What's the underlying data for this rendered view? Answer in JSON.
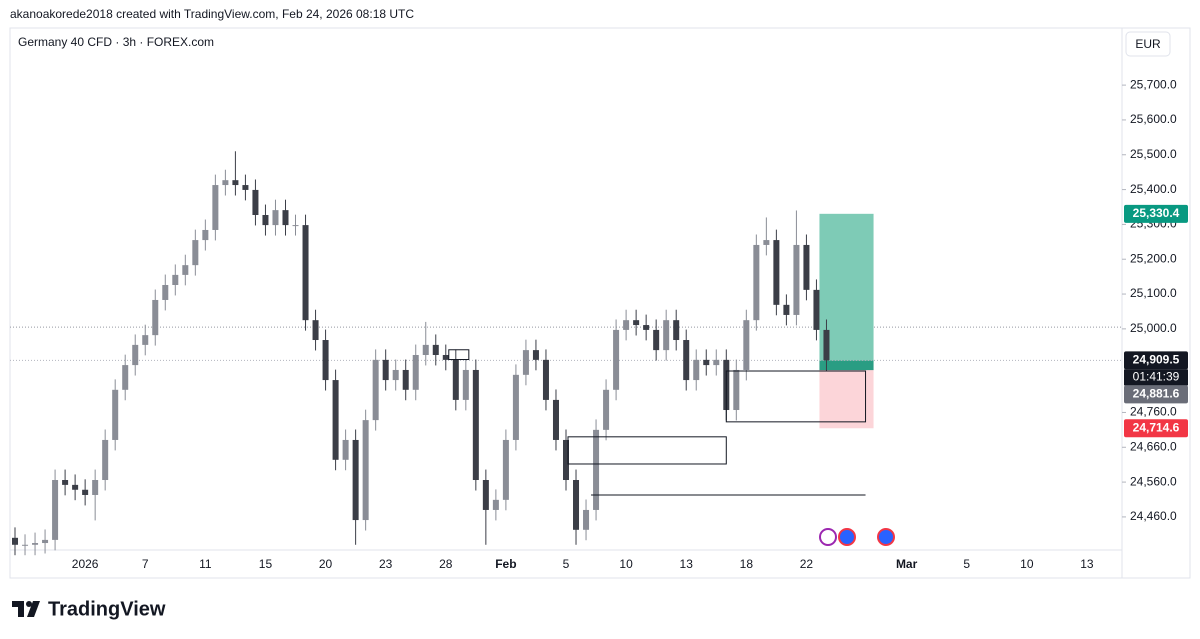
{
  "chart_data": {
    "type": "candlestick",
    "credit": "akanoakorede2018 created with TradingView.com, Feb 24, 2026 08:18 UTC",
    "title": "Germany 40 CFD · 3h · FOREX.com",
    "currency": "EUR",
    "brand": "TradingView",
    "up_color": "#8a8d96",
    "down_color": "#3b3e47",
    "categories": [
      null,
      null,
      null,
      null,
      null,
      null,
      null,
      "2026",
      null,
      null,
      null,
      null,
      null,
      "7",
      null,
      null,
      null,
      null,
      null,
      "11",
      null,
      null,
      null,
      null,
      null,
      "15",
      null,
      null,
      null,
      null,
      null,
      "20",
      null,
      null,
      null,
      null,
      null,
      "23",
      null,
      null,
      null,
      null,
      null,
      "28",
      null,
      null,
      null,
      null,
      null,
      "Feb",
      null,
      null,
      null,
      null,
      null,
      "5",
      null,
      null,
      null,
      null,
      null,
      "10",
      null,
      null,
      null,
      null,
      null,
      "13",
      null,
      null,
      null,
      null,
      null,
      "18",
      null,
      null,
      null,
      null,
      null,
      "22",
      null,
      null,
      null,
      null,
      null,
      null,
      null,
      null,
      null,
      "Mar",
      null,
      null,
      null,
      null,
      null,
      "5",
      null,
      null,
      null,
      null,
      null,
      "10",
      null,
      null,
      null,
      null,
      null,
      "13",
      null,
      null,
      null
    ],
    "open": [
      24400,
      24380,
      24380,
      24385,
      24394,
      24566,
      24552,
      24538,
      24523,
      24566,
      24681,
      24825,
      24896,
      24954,
      24982,
      25083,
      25126,
      25155,
      25183,
      25255,
      25284,
      25413,
      25427,
      25413,
      25399,
      25327,
      25298,
      25341,
      25298,
      25298,
      25025,
      24968,
      24853,
      24624,
      24681,
      24451,
      24738,
      24911,
      24853,
      24882,
      24825,
      24925,
      24954,
      24925,
      24911,
      24796,
      24882,
      24566,
      24480,
      24509,
      24681,
      24868,
      24939,
      24911,
      24796,
      24681,
      24566,
      24423,
      24480,
      24710,
      24825,
      24997,
      25025,
      25011,
      24997,
      24939,
      25025,
      24968,
      24853,
      24911,
      24896,
      24911,
      24767,
      24882,
      25025,
      25241,
      25255,
      25069,
      25040,
      25241,
      25112,
      24997,
      null,
      null,
      null,
      null,
      null,
      null,
      null,
      null,
      null,
      null,
      null,
      null,
      null,
      null,
      null,
      null,
      null,
      null,
      null,
      null,
      null,
      null,
      null,
      null,
      null,
      null,
      null,
      null,
      null
    ],
    "high": [
      24430,
      24410,
      24415,
      24424,
      24596,
      24596,
      24582,
      24568,
      24596,
      24711,
      24855,
      24926,
      24984,
      25012,
      25113,
      25156,
      25185,
      25213,
      25285,
      25314,
      25443,
      25457,
      25510,
      25443,
      25429,
      25357,
      25371,
      25371,
      25328,
      25328,
      25055,
      24998,
      24883,
      24711,
      24711,
      24768,
      24941,
      24941,
      24912,
      24912,
      24955,
      25020,
      24984,
      24955,
      24941,
      24912,
      24912,
      24596,
      24539,
      24711,
      24898,
      24969,
      24969,
      24941,
      24826,
      24711,
      24596,
      24510,
      24740,
      24855,
      25027,
      25055,
      25055,
      25041,
      25027,
      25055,
      25055,
      24998,
      24941,
      24941,
      24941,
      24941,
      24912,
      25055,
      25271,
      25320,
      25285,
      25099,
      25340,
      25271,
      25142,
      25027,
      null,
      null,
      null,
      null,
      null,
      null,
      null,
      null,
      null,
      null,
      null,
      null,
      null,
      null,
      null,
      null,
      null,
      null,
      null,
      null,
      null,
      null,
      null,
      null,
      null,
      null,
      null,
      null,
      null
    ],
    "low": [
      24350,
      24350,
      24350,
      24355,
      24364,
      24522,
      24508,
      24493,
      24450,
      24536,
      24651,
      24795,
      24866,
      24924,
      24952,
      25053,
      25096,
      25125,
      25153,
      25225,
      25254,
      25383,
      25383,
      25369,
      25297,
      25268,
      25268,
      25268,
      25268,
      24995,
      24938,
      24823,
      24594,
      24594,
      24380,
      24421,
      24708,
      24823,
      24823,
      24795,
      24795,
      24895,
      24895,
      24881,
      24766,
      24766,
      24536,
      24380,
      24450,
      24479,
      24651,
      24838,
      24881,
      24766,
      24651,
      24536,
      24380,
      24393,
      24450,
      24680,
      24795,
      24967,
      24981,
      24967,
      24909,
      24909,
      24938,
      24823,
      24823,
      24866,
      24866,
      24737,
      24737,
      24852,
      24995,
      25211,
      25039,
      25010,
      25010,
      25082,
      24967,
      24880,
      null,
      null,
      null,
      null,
      null,
      null,
      null,
      null,
      null,
      null,
      null,
      null,
      null,
      null,
      null,
      null,
      null,
      null,
      null,
      null,
      null,
      null,
      null,
      null,
      null,
      null,
      null,
      null,
      null
    ],
    "close": [
      24380,
      24380,
      24385,
      24394,
      24566,
      24552,
      24538,
      24523,
      24566,
      24681,
      24825,
      24896,
      24954,
      24982,
      25083,
      25126,
      25155,
      25183,
      25255,
      25284,
      25413,
      25427,
      25413,
      25399,
      25327,
      25298,
      25341,
      25298,
      25298,
      25025,
      24968,
      24853,
      24624,
      24681,
      24451,
      24738,
      24911,
      24853,
      24882,
      24825,
      24925,
      24954,
      24925,
      24911,
      24796,
      24882,
      24566,
      24480,
      24509,
      24681,
      24868,
      24939,
      24911,
      24796,
      24681,
      24566,
      24423,
      24480,
      24710,
      24825,
      24997,
      25025,
      25011,
      24997,
      24939,
      25025,
      24968,
      24853,
      24911,
      24896,
      24911,
      24767,
      24882,
      25025,
      25241,
      25255,
      25069,
      25040,
      25241,
      25112,
      24997,
      24909.5,
      null,
      null,
      null,
      null,
      null,
      null,
      null,
      null,
      null,
      null,
      null,
      null,
      null,
      null,
      null,
      null,
      null,
      null,
      null,
      null,
      null,
      null,
      null,
      null,
      null,
      null,
      null,
      null,
      null
    ],
    "ylim": [
      24365,
      25864
    ],
    "yticks": [
      {
        "value": 25700,
        "label": "25,700.0"
      },
      {
        "value": 25600,
        "label": "25,600.0"
      },
      {
        "value": 25500,
        "label": "25,500.0"
      },
      {
        "value": 25400,
        "label": "25,400.0"
      },
      {
        "value": 25300,
        "label": "25,300.0"
      },
      {
        "value": 25200,
        "label": "25,200.0"
      },
      {
        "value": 25100,
        "label": "25,100.0"
      },
      {
        "value": 25000,
        "label": "25,000.0"
      },
      {
        "value": 24760,
        "label": "24,760.0"
      },
      {
        "value": 24660,
        "label": "24,660.0"
      },
      {
        "value": 24560,
        "label": "24,560.0"
      },
      {
        "value": 24460,
        "label": "24,460.0"
      }
    ],
    "price_labels": [
      {
        "value": 25330.4,
        "label": "25,330.4",
        "color": "#089981"
      },
      {
        "value": 24909.5,
        "label": "24,909.5",
        "color": "#131722",
        "countdown": "01:41:39"
      },
      {
        "value": 24881.6,
        "label": "24,881.6",
        "color": "#6a6d78"
      },
      {
        "value": 24714.6,
        "label": "24,714.6",
        "color": "#f23645"
      }
    ],
    "position": {
      "x0": 80.8,
      "x1": 86.2,
      "target_color": "#7ecbb6",
      "stop_color": "#fcd5d9",
      "entry_color": "#2a9d83"
    },
    "zones": [
      {
        "x0": 43.8,
        "x1": 45.8,
        "top": 24940,
        "bottom": 24912
      },
      {
        "x0": 55.7,
        "x1": 71.5,
        "top": 24690,
        "bottom": 24612
      },
      {
        "x0": 71.5,
        "x1": 85.4,
        "top": 24879,
        "bottom": 24733
      }
    ],
    "hlines": [
      {
        "x0": 58,
        "x1": 85.4,
        "value": 24523
      }
    ],
    "dotted_levels": [
      25005
    ]
  }
}
